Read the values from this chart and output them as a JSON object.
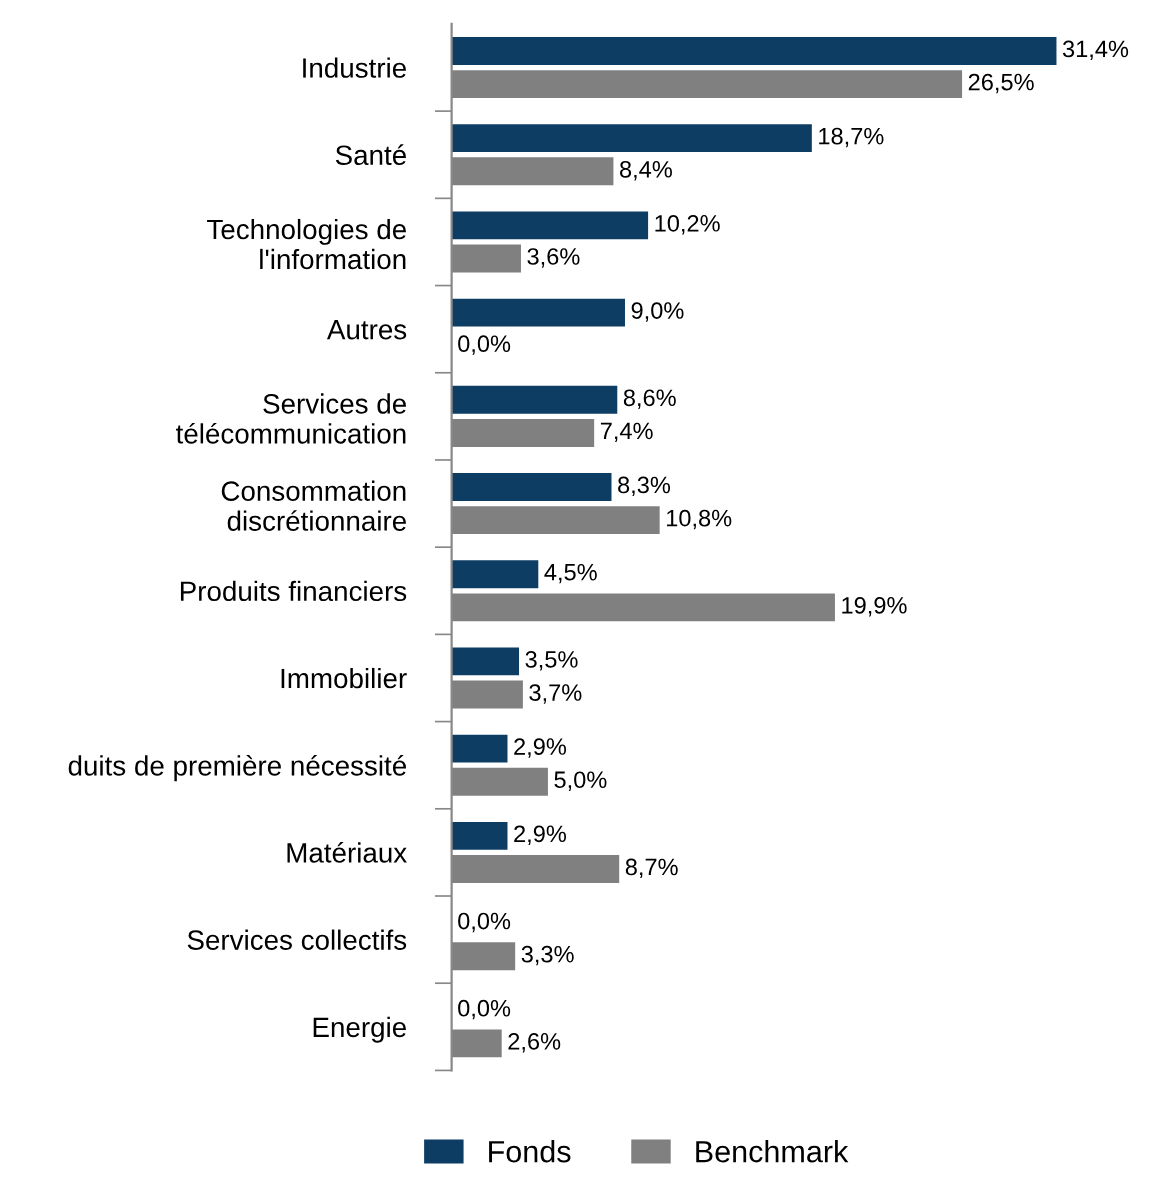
{
  "chart_data": {
    "type": "bar",
    "orientation": "horizontal",
    "categories": [
      "Industrie",
      "Santé",
      "Technologies de\nl'information",
      "Autres",
      "Services de\ntélécommunication",
      "Consommation\ndiscrétionnaire",
      "Produits financiers",
      "Immobilier",
      "duits de première nécessité",
      "Matériaux",
      "Services collectifs",
      "Energie"
    ],
    "series": [
      {
        "name": "Fonds",
        "color": "#0d3d63",
        "values": [
          31.4,
          18.7,
          10.2,
          9.0,
          8.6,
          8.3,
          4.5,
          3.5,
          2.9,
          2.9,
          0.0,
          0.0
        ],
        "value_labels": [
          "31,4%",
          "18,7%",
          "10,2%",
          "9,0%",
          "8,6%",
          "8,3%",
          "4,5%",
          "3,5%",
          "2,9%",
          "2,9%",
          "0,0%",
          "0,0%"
        ]
      },
      {
        "name": "Benchmark",
        "color": "#808080",
        "values": [
          26.5,
          8.4,
          3.6,
          0.0,
          7.4,
          10.8,
          19.9,
          3.7,
          5.0,
          8.7,
          3.3,
          2.6
        ],
        "value_labels": [
          "26,5%",
          "8,4%",
          "3,6%",
          "0,0%",
          "7,4%",
          "10,8%",
          "19,9%",
          "3,7%",
          "5,0%",
          "8,7%",
          "3,3%",
          "2,6%"
        ]
      }
    ],
    "tick_labels": "y",
    "legend": "bottom",
    "grid": false
  }
}
